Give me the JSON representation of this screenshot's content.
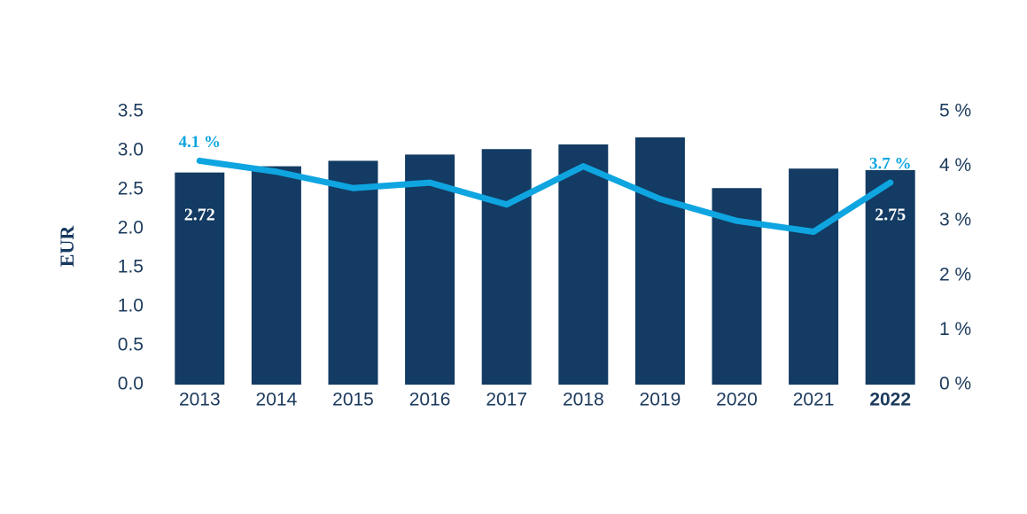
{
  "chart_data": {
    "type": "bar",
    "categories": [
      "2013",
      "2014",
      "2015",
      "2016",
      "2017",
      "2018",
      "2019",
      "2020",
      "2021",
      "2022"
    ],
    "highlight_category": "2022",
    "series": [
      {
        "type": "bar",
        "axis": "left",
        "values": [
          2.72,
          2.8,
          2.87,
          2.95,
          3.02,
          3.08,
          3.17,
          2.52,
          2.77,
          2.75
        ]
      },
      {
        "type": "line",
        "axis": "right",
        "values": [
          4.1,
          3.9,
          3.6,
          3.7,
          3.3,
          4.0,
          3.4,
          3.0,
          2.8,
          3.7
        ]
      }
    ],
    "ylabel": "EUR",
    "ylim": [
      0,
      3.5
    ],
    "yticks": [
      "0.0",
      "0.5",
      "1.0",
      "1.5",
      "2.0",
      "2.5",
      "3.0",
      "3.5"
    ],
    "y2lim": [
      0,
      5
    ],
    "y2ticks": [
      "0 %",
      "1 %",
      "2 %",
      "3 %",
      "4 %",
      "5 %"
    ],
    "bar_labels": [
      {
        "index": 0,
        "text": "2.72"
      },
      {
        "index": 9,
        "text": "2.75"
      }
    ],
    "line_labels": [
      {
        "index": 0,
        "text": "4.1 %"
      },
      {
        "index": 9,
        "text": "3.7 %"
      }
    ],
    "grid": false,
    "colors": {
      "bar": "#133b63",
      "line": "#0ea5e0",
      "text": "#1b3a5c"
    }
  }
}
